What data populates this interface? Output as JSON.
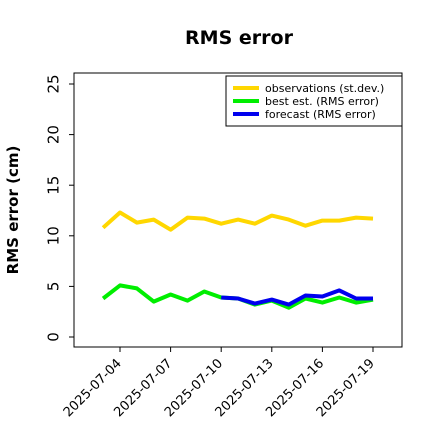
{
  "chart_data": {
    "type": "line",
    "title": "RMS error",
    "xlabel": "",
    "ylabel": "RMS error (cm)",
    "ylim": [
      0,
      25
    ],
    "yticks": [
      0,
      5,
      10,
      15,
      20,
      25
    ],
    "xlim": [
      "2025-07-02",
      "2025-07-20"
    ],
    "xticks": [
      {
        "label": "2025-07-04",
        "color": "#000000"
      },
      {
        "label": "2025-07-07",
        "color": "#000000"
      },
      {
        "label": "2025-07-10",
        "color": "#228B22"
      },
      {
        "label": "2025-07-13",
        "color": "#000000"
      },
      {
        "label": "2025-07-16",
        "color": "#000000"
      },
      {
        "label": "2025-07-19",
        "color": "#000000"
      }
    ],
    "legend_position": "top-right",
    "grid": false,
    "series": [
      {
        "name": "observations (st.dev.)",
        "color": "#FFD700",
        "x": [
          "2025-07-03",
          "2025-07-04",
          "2025-07-05",
          "2025-07-06",
          "2025-07-07",
          "2025-07-08",
          "2025-07-09",
          "2025-07-10",
          "2025-07-11",
          "2025-07-12",
          "2025-07-13",
          "2025-07-14",
          "2025-07-15",
          "2025-07-16",
          "2025-07-17",
          "2025-07-18",
          "2025-07-19"
        ],
        "values": [
          10.8,
          12.3,
          11.3,
          11.6,
          10.6,
          11.8,
          11.7,
          11.2,
          11.6,
          11.2,
          12.0,
          11.6,
          11.0,
          11.5,
          11.5,
          11.8,
          11.7
        ]
      },
      {
        "name": "best est. (RMS error)",
        "color": "#00EE00",
        "x": [
          "2025-07-03",
          "2025-07-04",
          "2025-07-05",
          "2025-07-06",
          "2025-07-07",
          "2025-07-08",
          "2025-07-09",
          "2025-07-10",
          "2025-07-11",
          "2025-07-12",
          "2025-07-13",
          "2025-07-14",
          "2025-07-15",
          "2025-07-16",
          "2025-07-17",
          "2025-07-18",
          "2025-07-19"
        ],
        "values": [
          3.8,
          5.1,
          4.8,
          3.5,
          4.2,
          3.6,
          4.5,
          3.9,
          3.8,
          3.2,
          3.6,
          2.9,
          3.8,
          3.4,
          3.9,
          3.4,
          3.7
        ]
      },
      {
        "name": "forecast (RMS error)",
        "color": "#0000EE",
        "x": [
          "2025-07-10",
          "2025-07-11",
          "2025-07-12",
          "2025-07-13",
          "2025-07-14",
          "2025-07-15",
          "2025-07-16",
          "2025-07-17",
          "2025-07-18",
          "2025-07-19"
        ],
        "values": [
          3.9,
          3.8,
          3.3,
          3.7,
          3.2,
          4.1,
          4.0,
          4.6,
          3.8,
          3.8
        ]
      }
    ]
  }
}
